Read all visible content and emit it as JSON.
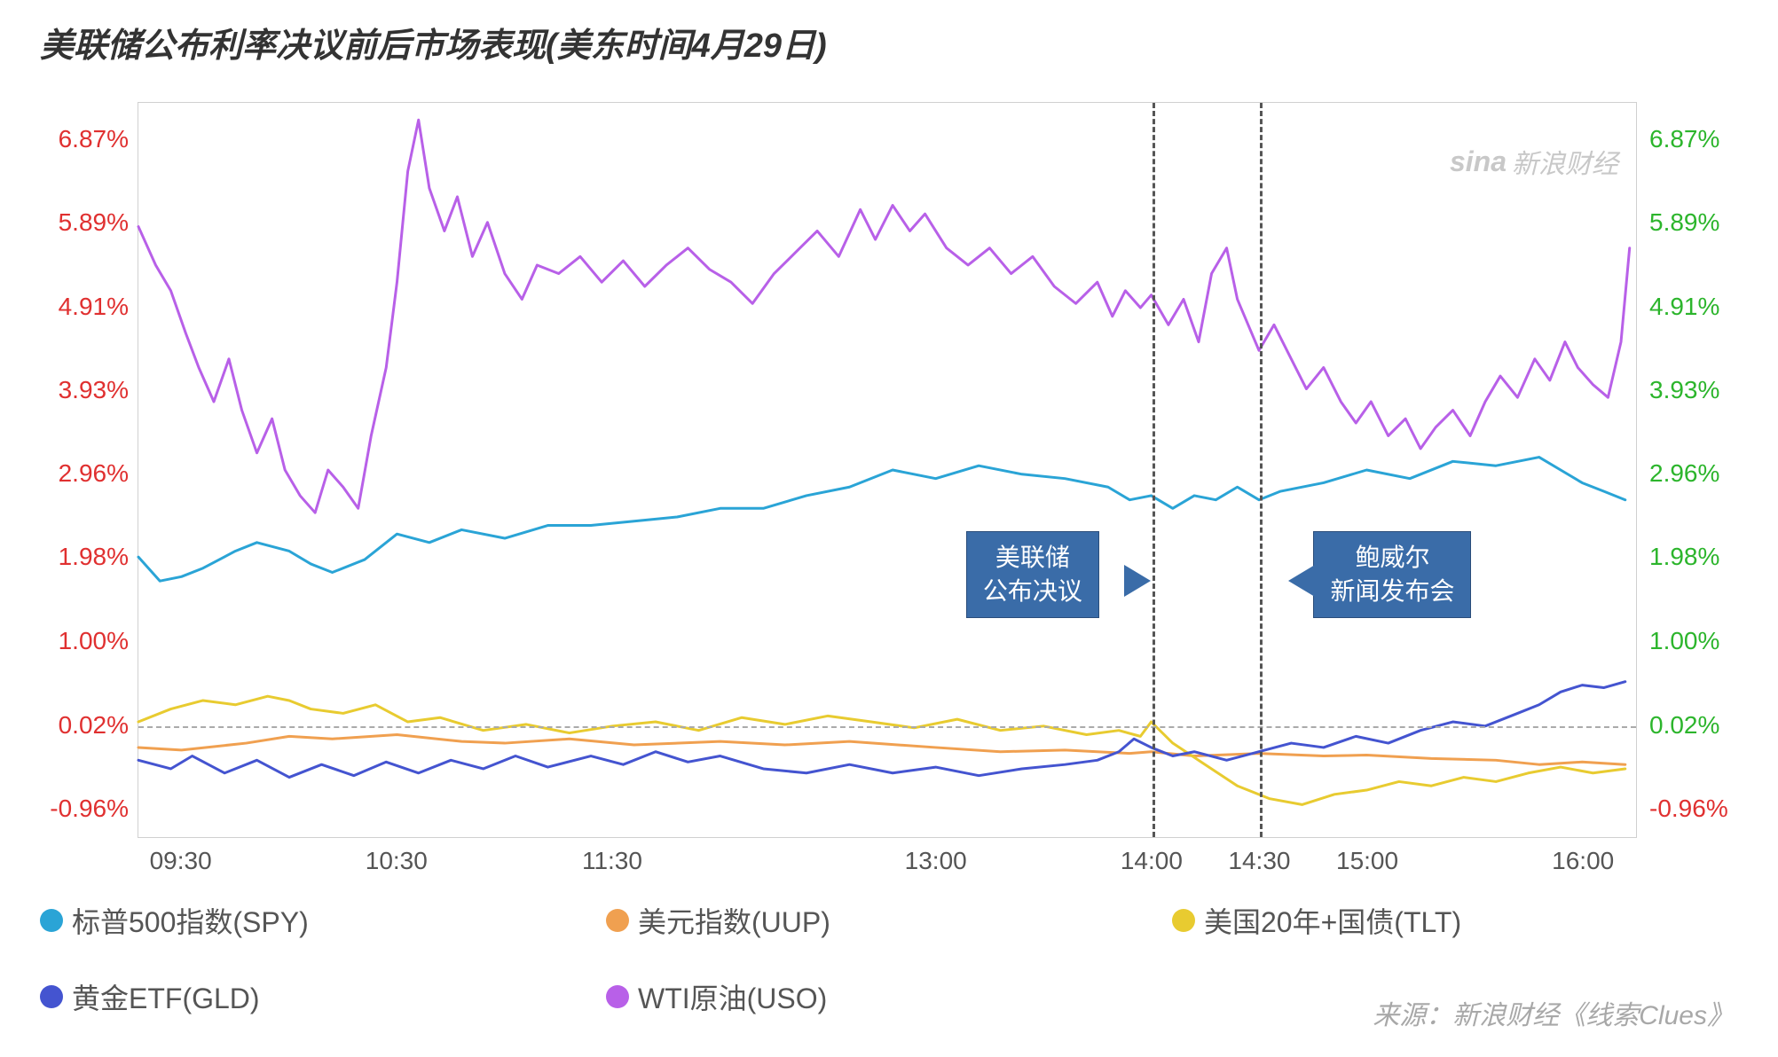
{
  "title": "美联储公布利率决议前后市场表现(美东时间4月29日)",
  "watermark": {
    "logo": "sina",
    "text": "新浪财经"
  },
  "source": "来源：新浪财经《线索Clues》",
  "chart": {
    "type": "line",
    "background_color": "#ffffff",
    "plot_border_color": "#d0d0d0",
    "title_fontsize": 38,
    "label_fontsize": 28,
    "y_axis_left_color": "#e03030",
    "y_axis_right_color": "#2cb52c",
    "y_ticks": [
      {
        "value": 6.87,
        "label": "6.87%"
      },
      {
        "value": 5.89,
        "label": "5.89%"
      },
      {
        "value": 4.91,
        "label": "4.91%"
      },
      {
        "value": 3.93,
        "label": "3.93%"
      },
      {
        "value": 2.96,
        "label": "2.96%"
      },
      {
        "value": 1.98,
        "label": "1.98%"
      },
      {
        "value": 1.0,
        "label": "1.00%"
      },
      {
        "value": 0.02,
        "label": "0.02%"
      },
      {
        "value": -0.96,
        "label": "-0.96%"
      }
    ],
    "y_min": -1.3,
    "y_max": 7.3,
    "x_min": 9.3,
    "x_max": 16.25,
    "x_ticks": [
      {
        "value": 9.5,
        "label": "09:30"
      },
      {
        "value": 10.5,
        "label": "10:30"
      },
      {
        "value": 11.5,
        "label": "11:30"
      },
      {
        "value": 13.0,
        "label": "13:00"
      },
      {
        "value": 14.0,
        "label": "14:00"
      },
      {
        "value": 14.5,
        "label": "14:30"
      },
      {
        "value": 15.0,
        "label": "15:00"
      },
      {
        "value": 16.0,
        "label": "16:00"
      }
    ],
    "zero_line_y": 0.02,
    "vlines": [
      {
        "x": 14.0,
        "label": "美联储\n公布决议"
      },
      {
        "x": 14.5,
        "label": "鲍威尔\n新闻发布会"
      }
    ],
    "callout_bg": "#3a6ca8",
    "callout_border": "#2a4d7a",
    "callout_text_color": "#ffffff",
    "series": [
      {
        "key": "spy",
        "label": "标普500指数(SPY)",
        "color": "#2AA4D6",
        "width": 3,
        "points": [
          [
            9.3,
            1.98
          ],
          [
            9.4,
            1.7
          ],
          [
            9.5,
            1.75
          ],
          [
            9.6,
            1.85
          ],
          [
            9.75,
            2.05
          ],
          [
            9.85,
            2.15
          ],
          [
            10.0,
            2.05
          ],
          [
            10.1,
            1.9
          ],
          [
            10.2,
            1.8
          ],
          [
            10.35,
            1.95
          ],
          [
            10.5,
            2.25
          ],
          [
            10.65,
            2.15
          ],
          [
            10.8,
            2.3
          ],
          [
            11.0,
            2.2
          ],
          [
            11.2,
            2.35
          ],
          [
            11.4,
            2.35
          ],
          [
            11.6,
            2.4
          ],
          [
            11.8,
            2.45
          ],
          [
            12.0,
            2.55
          ],
          [
            12.2,
            2.55
          ],
          [
            12.4,
            2.7
          ],
          [
            12.6,
            2.8
          ],
          [
            12.8,
            3.0
          ],
          [
            13.0,
            2.9
          ],
          [
            13.2,
            3.05
          ],
          [
            13.4,
            2.95
          ],
          [
            13.6,
            2.9
          ],
          [
            13.8,
            2.8
          ],
          [
            13.9,
            2.65
          ],
          [
            14.0,
            2.7
          ],
          [
            14.1,
            2.55
          ],
          [
            14.2,
            2.7
          ],
          [
            14.3,
            2.65
          ],
          [
            14.4,
            2.8
          ],
          [
            14.5,
            2.65
          ],
          [
            14.6,
            2.75
          ],
          [
            14.8,
            2.85
          ],
          [
            15.0,
            3.0
          ],
          [
            15.2,
            2.9
          ],
          [
            15.4,
            3.1
          ],
          [
            15.6,
            3.05
          ],
          [
            15.8,
            3.15
          ],
          [
            15.9,
            3.0
          ],
          [
            16.0,
            2.85
          ],
          [
            16.1,
            2.75
          ],
          [
            16.2,
            2.65
          ]
        ]
      },
      {
        "key": "uup",
        "label": "美元指数(UUP)",
        "color": "#F0A050",
        "width": 3,
        "points": [
          [
            9.3,
            -0.25
          ],
          [
            9.5,
            -0.28
          ],
          [
            9.8,
            -0.2
          ],
          [
            10.0,
            -0.12
          ],
          [
            10.2,
            -0.15
          ],
          [
            10.5,
            -0.1
          ],
          [
            10.8,
            -0.18
          ],
          [
            11.0,
            -0.2
          ],
          [
            11.3,
            -0.15
          ],
          [
            11.6,
            -0.22
          ],
          [
            12.0,
            -0.18
          ],
          [
            12.3,
            -0.22
          ],
          [
            12.6,
            -0.18
          ],
          [
            13.0,
            -0.25
          ],
          [
            13.3,
            -0.3
          ],
          [
            13.6,
            -0.28
          ],
          [
            13.9,
            -0.32
          ],
          [
            14.0,
            -0.3
          ],
          [
            14.2,
            -0.35
          ],
          [
            14.5,
            -0.32
          ],
          [
            14.8,
            -0.35
          ],
          [
            15.0,
            -0.34
          ],
          [
            15.3,
            -0.38
          ],
          [
            15.6,
            -0.4
          ],
          [
            15.8,
            -0.45
          ],
          [
            16.0,
            -0.42
          ],
          [
            16.2,
            -0.45
          ]
        ]
      },
      {
        "key": "tlt",
        "label": "美国20年+国债(TLT)",
        "color": "#E8CB30",
        "width": 3,
        "points": [
          [
            9.3,
            0.05
          ],
          [
            9.45,
            0.2
          ],
          [
            9.6,
            0.3
          ],
          [
            9.75,
            0.25
          ],
          [
            9.9,
            0.35
          ],
          [
            10.0,
            0.3
          ],
          [
            10.1,
            0.2
          ],
          [
            10.25,
            0.15
          ],
          [
            10.4,
            0.25
          ],
          [
            10.55,
            0.05
          ],
          [
            10.7,
            0.1
          ],
          [
            10.9,
            -0.05
          ],
          [
            11.1,
            0.02
          ],
          [
            11.3,
            -0.08
          ],
          [
            11.5,
            0.0
          ],
          [
            11.7,
            0.05
          ],
          [
            11.9,
            -0.05
          ],
          [
            12.1,
            0.1
          ],
          [
            12.3,
            0.02
          ],
          [
            12.5,
            0.12
          ],
          [
            12.7,
            0.05
          ],
          [
            12.9,
            -0.02
          ],
          [
            13.1,
            0.08
          ],
          [
            13.3,
            -0.05
          ],
          [
            13.5,
            0.0
          ],
          [
            13.7,
            -0.1
          ],
          [
            13.85,
            -0.05
          ],
          [
            13.95,
            -0.12
          ],
          [
            14.0,
            0.05
          ],
          [
            14.1,
            -0.2
          ],
          [
            14.25,
            -0.45
          ],
          [
            14.4,
            -0.7
          ],
          [
            14.55,
            -0.85
          ],
          [
            14.7,
            -0.92
          ],
          [
            14.85,
            -0.8
          ],
          [
            15.0,
            -0.75
          ],
          [
            15.15,
            -0.65
          ],
          [
            15.3,
            -0.7
          ],
          [
            15.45,
            -0.6
          ],
          [
            15.6,
            -0.65
          ],
          [
            15.75,
            -0.55
          ],
          [
            15.9,
            -0.48
          ],
          [
            16.05,
            -0.55
          ],
          [
            16.2,
            -0.5
          ]
        ]
      },
      {
        "key": "gld",
        "label": "黄金ETF(GLD)",
        "color": "#4454D0",
        "width": 3,
        "points": [
          [
            9.3,
            -0.4
          ],
          [
            9.45,
            -0.5
          ],
          [
            9.55,
            -0.35
          ],
          [
            9.7,
            -0.55
          ],
          [
            9.85,
            -0.4
          ],
          [
            10.0,
            -0.6
          ],
          [
            10.15,
            -0.45
          ],
          [
            10.3,
            -0.58
          ],
          [
            10.45,
            -0.42
          ],
          [
            10.6,
            -0.55
          ],
          [
            10.75,
            -0.4
          ],
          [
            10.9,
            -0.5
          ],
          [
            11.05,
            -0.35
          ],
          [
            11.2,
            -0.48
          ],
          [
            11.4,
            -0.35
          ],
          [
            11.55,
            -0.45
          ],
          [
            11.7,
            -0.3
          ],
          [
            11.85,
            -0.42
          ],
          [
            12.0,
            -0.35
          ],
          [
            12.2,
            -0.5
          ],
          [
            12.4,
            -0.55
          ],
          [
            12.6,
            -0.45
          ],
          [
            12.8,
            -0.55
          ],
          [
            13.0,
            -0.48
          ],
          [
            13.2,
            -0.58
          ],
          [
            13.4,
            -0.5
          ],
          [
            13.6,
            -0.45
          ],
          [
            13.75,
            -0.4
          ],
          [
            13.85,
            -0.3
          ],
          [
            13.92,
            -0.15
          ],
          [
            14.0,
            -0.25
          ],
          [
            14.1,
            -0.35
          ],
          [
            14.2,
            -0.3
          ],
          [
            14.35,
            -0.4
          ],
          [
            14.5,
            -0.3
          ],
          [
            14.65,
            -0.2
          ],
          [
            14.8,
            -0.25
          ],
          [
            14.95,
            -0.12
          ],
          [
            15.1,
            -0.2
          ],
          [
            15.25,
            -0.05
          ],
          [
            15.4,
            0.05
          ],
          [
            15.55,
            0.0
          ],
          [
            15.7,
            0.15
          ],
          [
            15.8,
            0.25
          ],
          [
            15.9,
            0.4
          ],
          [
            16.0,
            0.48
          ],
          [
            16.1,
            0.45
          ],
          [
            16.2,
            0.52
          ]
        ]
      },
      {
        "key": "uso",
        "label": "WTI原油(USO)",
        "color": "#B860E8",
        "width": 3,
        "points": [
          [
            9.3,
            5.85
          ],
          [
            9.38,
            5.4
          ],
          [
            9.45,
            5.1
          ],
          [
            9.52,
            4.6
          ],
          [
            9.58,
            4.2
          ],
          [
            9.65,
            3.8
          ],
          [
            9.72,
            4.3
          ],
          [
            9.78,
            3.7
          ],
          [
            9.85,
            3.2
          ],
          [
            9.92,
            3.6
          ],
          [
            9.98,
            3.0
          ],
          [
            10.05,
            2.7
          ],
          [
            10.12,
            2.5
          ],
          [
            10.18,
            3.0
          ],
          [
            10.25,
            2.8
          ],
          [
            10.32,
            2.55
          ],
          [
            10.38,
            3.4
          ],
          [
            10.45,
            4.2
          ],
          [
            10.5,
            5.2
          ],
          [
            10.55,
            6.5
          ],
          [
            10.6,
            7.1
          ],
          [
            10.65,
            6.3
          ],
          [
            10.72,
            5.8
          ],
          [
            10.78,
            6.2
          ],
          [
            10.85,
            5.5
          ],
          [
            10.92,
            5.9
          ],
          [
            11.0,
            5.3
          ],
          [
            11.08,
            5.0
          ],
          [
            11.15,
            5.4
          ],
          [
            11.25,
            5.3
          ],
          [
            11.35,
            5.5
          ],
          [
            11.45,
            5.2
          ],
          [
            11.55,
            5.45
          ],
          [
            11.65,
            5.15
          ],
          [
            11.75,
            5.4
          ],
          [
            11.85,
            5.6
          ],
          [
            11.95,
            5.35
          ],
          [
            12.05,
            5.2
          ],
          [
            12.15,
            4.95
          ],
          [
            12.25,
            5.3
          ],
          [
            12.35,
            5.55
          ],
          [
            12.45,
            5.8
          ],
          [
            12.55,
            5.5
          ],
          [
            12.65,
            6.05
          ],
          [
            12.72,
            5.7
          ],
          [
            12.8,
            6.1
          ],
          [
            12.88,
            5.8
          ],
          [
            12.95,
            6.0
          ],
          [
            13.05,
            5.6
          ],
          [
            13.15,
            5.4
          ],
          [
            13.25,
            5.6
          ],
          [
            13.35,
            5.3
          ],
          [
            13.45,
            5.5
          ],
          [
            13.55,
            5.15
          ],
          [
            13.65,
            4.95
          ],
          [
            13.75,
            5.2
          ],
          [
            13.82,
            4.8
          ],
          [
            13.88,
            5.1
          ],
          [
            13.95,
            4.9
          ],
          [
            14.0,
            5.05
          ],
          [
            14.08,
            4.7
          ],
          [
            14.15,
            5.0
          ],
          [
            14.22,
            4.5
          ],
          [
            14.28,
            5.3
          ],
          [
            14.35,
            5.6
          ],
          [
            14.4,
            5.0
          ],
          [
            14.45,
            4.7
          ],
          [
            14.5,
            4.4
          ],
          [
            14.57,
            4.7
          ],
          [
            14.65,
            4.3
          ],
          [
            14.72,
            3.95
          ],
          [
            14.8,
            4.2
          ],
          [
            14.88,
            3.8
          ],
          [
            14.95,
            3.55
          ],
          [
            15.02,
            3.8
          ],
          [
            15.1,
            3.4
          ],
          [
            15.18,
            3.6
          ],
          [
            15.25,
            3.25
          ],
          [
            15.32,
            3.5
          ],
          [
            15.4,
            3.7
          ],
          [
            15.48,
            3.4
          ],
          [
            15.55,
            3.8
          ],
          [
            15.62,
            4.1
          ],
          [
            15.7,
            3.85
          ],
          [
            15.78,
            4.3
          ],
          [
            15.85,
            4.05
          ],
          [
            15.92,
            4.5
          ],
          [
            15.98,
            4.2
          ],
          [
            16.05,
            4.0
          ],
          [
            16.12,
            3.85
          ],
          [
            16.18,
            4.5
          ],
          [
            16.22,
            5.6
          ]
        ]
      }
    ],
    "legend_columns": 3
  }
}
